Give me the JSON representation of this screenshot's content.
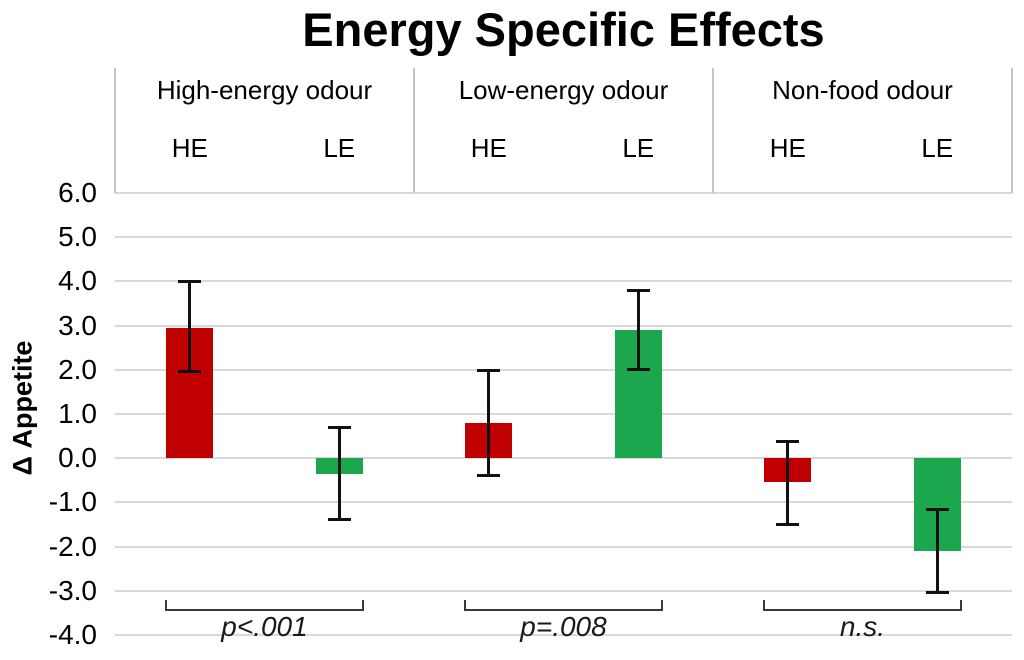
{
  "title": "Energy Specific Effects",
  "y_axis": {
    "label": "Δ Appetite",
    "tick_labels": [
      "6.0",
      "5.0",
      "4.0",
      "3.0",
      "2.0",
      "1.0",
      "0.0",
      "-1.0",
      "-2.0",
      "-3.0",
      "-4.0"
    ],
    "tick_values": [
      6,
      5,
      4,
      3,
      2,
      1,
      0,
      -1,
      -2,
      -3,
      -4
    ]
  },
  "colors": {
    "he_bar": "#c00000",
    "le_bar": "#1ca64d",
    "gridline": "#d9d9d9",
    "header_border": "#c4c4c4",
    "error_bar": "#111111",
    "bracket": "#3a3a3a"
  },
  "chart_data": {
    "type": "bar",
    "title": "Energy Specific Effects",
    "xlabel": "",
    "ylabel": "Δ Appetite",
    "ylim": [
      -4.0,
      6.0
    ],
    "ytick_step": 1.0,
    "grid": true,
    "legend": "none",
    "bar_conditions": [
      "HE",
      "LE"
    ],
    "groups": [
      {
        "label": "High-energy odour",
        "significance": "p<.001",
        "bars": [
          {
            "label": "HE",
            "value": 2.95,
            "err_low": 1.95,
            "err_high": 4.0,
            "color": "#c00000"
          },
          {
            "label": "LE",
            "value": -0.35,
            "err_low": -1.4,
            "err_high": 0.7,
            "color": "#1ca64d"
          }
        ]
      },
      {
        "label": "Low-energy odour",
        "significance": "p=.008",
        "bars": [
          {
            "label": "HE",
            "value": 0.8,
            "err_low": -0.4,
            "err_high": 2.0,
            "color": "#c00000"
          },
          {
            "label": "LE",
            "value": 2.9,
            "err_low": 2.0,
            "err_high": 3.8,
            "color": "#1ca64d"
          }
        ]
      },
      {
        "label": "Non-food odour",
        "significance": "n.s.",
        "bars": [
          {
            "label": "HE",
            "value": -0.55,
            "err_low": -1.5,
            "err_high": 0.4,
            "color": "#c00000"
          },
          {
            "label": "LE",
            "value": -2.1,
            "err_low": -3.05,
            "err_high": -1.15,
            "color": "#1ca64d"
          }
        ]
      }
    ]
  }
}
